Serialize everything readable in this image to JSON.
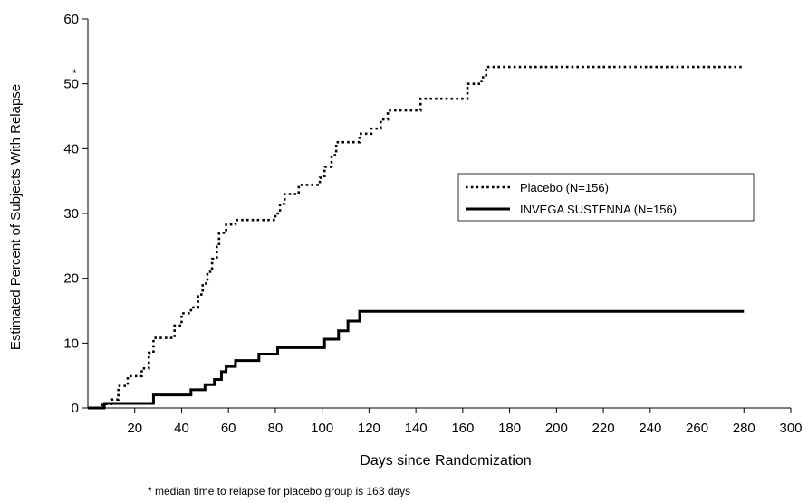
{
  "chart_data": {
    "type": "line",
    "xlabel": "Days since Randomization",
    "ylabel": "Estimated Percent of Subjects With Relapse",
    "xlim": [
      0,
      300
    ],
    "ylim": [
      0,
      60
    ],
    "x_ticks": [
      20,
      40,
      60,
      80,
      100,
      120,
      140,
      160,
      180,
      200,
      220,
      240,
      260,
      280,
      300
    ],
    "y_ticks": [
      0,
      10,
      20,
      30,
      40,
      50,
      60
    ],
    "grid": false,
    "legend_position": "right",
    "median_marker": {
      "y": 50,
      "label": "*"
    },
    "series": [
      {
        "name": "Placebo (N=156)",
        "style": "dotted",
        "color": "#000000",
        "points": [
          [
            0,
            0
          ],
          [
            6,
            0
          ],
          [
            6,
            0.6
          ],
          [
            10,
            0.6
          ],
          [
            10,
            1.3
          ],
          [
            13,
            1.3
          ],
          [
            13,
            3.4
          ],
          [
            17,
            3.4
          ],
          [
            17,
            4.9
          ],
          [
            20,
            4.9
          ],
          [
            23,
            4.9
          ],
          [
            23,
            6.1
          ],
          [
            26,
            6.1
          ],
          [
            26,
            8.5
          ],
          [
            28,
            8.5
          ],
          [
            28,
            10.8
          ],
          [
            33,
            10.8
          ],
          [
            37,
            10.8
          ],
          [
            37,
            12.7
          ],
          [
            40,
            12.7
          ],
          [
            40,
            14.6
          ],
          [
            44,
            14.6
          ],
          [
            44,
            15.5
          ],
          [
            47,
            15.5
          ],
          [
            47,
            17.5
          ],
          [
            49,
            17.5
          ],
          [
            49,
            19.2
          ],
          [
            51,
            19.2
          ],
          [
            51,
            21
          ],
          [
            53,
            21
          ],
          [
            53,
            23
          ],
          [
            55,
            23
          ],
          [
            55,
            25
          ],
          [
            56,
            25
          ],
          [
            56,
            27
          ],
          [
            59,
            27
          ],
          [
            59,
            28.3
          ],
          [
            63,
            28.3
          ],
          [
            63,
            29
          ],
          [
            80,
            29
          ],
          [
            80,
            30
          ],
          [
            82,
            30
          ],
          [
            82,
            31.5
          ],
          [
            84,
            31.5
          ],
          [
            84,
            33
          ],
          [
            90,
            33
          ],
          [
            90,
            34.4
          ],
          [
            99,
            34.4
          ],
          [
            99,
            35.5
          ],
          [
            101,
            35.5
          ],
          [
            101,
            37.2
          ],
          [
            104,
            37.2
          ],
          [
            104,
            39
          ],
          [
            106,
            39
          ],
          [
            106,
            41
          ],
          [
            116,
            41
          ],
          [
            116,
            42.3
          ],
          [
            121,
            42.3
          ],
          [
            121,
            43.1
          ],
          [
            125,
            43.1
          ],
          [
            125,
            44.5
          ],
          [
            128,
            44.5
          ],
          [
            128,
            45.9
          ],
          [
            142,
            45.9
          ],
          [
            142,
            47.7
          ],
          [
            162,
            47.7
          ],
          [
            162,
            50
          ],
          [
            168,
            50
          ],
          [
            168,
            51
          ],
          [
            170,
            51
          ],
          [
            170,
            52.6
          ],
          [
            279,
            52.6
          ]
        ]
      },
      {
        "name": "INVEGA SUSTENNA (N=156)",
        "style": "solid",
        "color": "#000000",
        "points": [
          [
            0,
            0
          ],
          [
            7,
            0
          ],
          [
            7,
            0.7
          ],
          [
            9,
            0.7
          ],
          [
            28,
            0.7
          ],
          [
            28,
            2
          ],
          [
            44,
            2
          ],
          [
            44,
            2.8
          ],
          [
            50,
            2.8
          ],
          [
            50,
            3.6
          ],
          [
            54,
            3.6
          ],
          [
            54,
            4.4
          ],
          [
            57,
            4.4
          ],
          [
            57,
            5.6
          ],
          [
            59,
            5.6
          ],
          [
            59,
            6.4
          ],
          [
            63,
            6.4
          ],
          [
            63,
            7.3
          ],
          [
            73,
            7.3
          ],
          [
            73,
            8.3
          ],
          [
            81,
            8.3
          ],
          [
            81,
            9.3
          ],
          [
            101,
            9.3
          ],
          [
            101,
            10.6
          ],
          [
            107,
            10.6
          ],
          [
            107,
            11.9
          ],
          [
            111,
            11.9
          ],
          [
            111,
            13.4
          ],
          [
            116,
            13.4
          ],
          [
            116,
            14.9
          ],
          [
            280,
            14.9
          ]
        ]
      }
    ],
    "footnote": "* median time to relapse for placebo group is 163 days"
  }
}
